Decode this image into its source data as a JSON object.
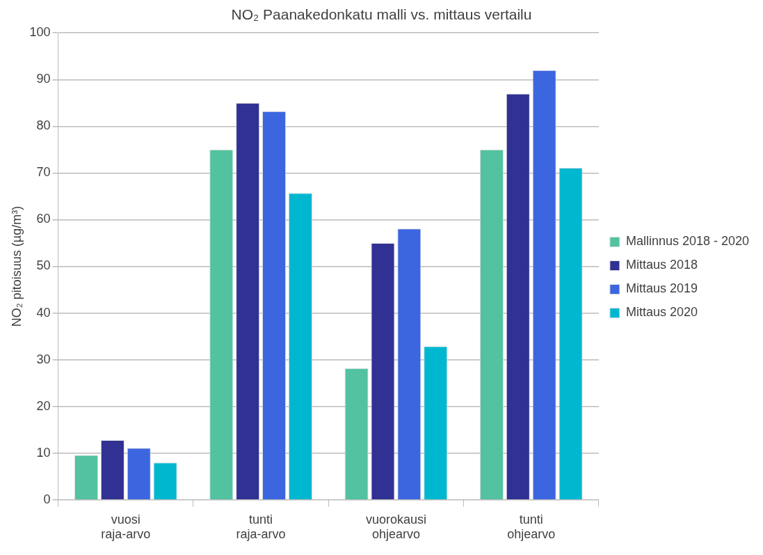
{
  "chart_data": {
    "type": "bar",
    "title": "NO₂ Paanakedonkatu malli vs. mittaus vertailu",
    "ylabel": "NO₂ pitoisuus (µg/m³)",
    "categories": [
      "vuosi\nraja-arvo",
      "tunti\nraja-arvo",
      "vuorokausi\nohjearvo",
      "tunti\nohjearvo"
    ],
    "series": [
      {
        "name": "Mallinnus 2018 - 2020",
        "color": "#52c2a0",
        "values": [
          9.6,
          75,
          28.2,
          75
        ]
      },
      {
        "name": "Mittaus 2018",
        "color": "#303193",
        "values": [
          12.8,
          85,
          55,
          87
        ]
      },
      {
        "name": "Mittaus 2019",
        "color": "#3c66e0",
        "values": [
          11.1,
          83.2,
          58.1,
          92
        ]
      },
      {
        "name": "Mittaus 2020",
        "color": "#00b7d0",
        "values": [
          8,
          65.7,
          32.9,
          71.1
        ]
      }
    ],
    "ylim": [
      0,
      100
    ],
    "yticks": [
      0,
      10,
      20,
      30,
      40,
      50,
      60,
      70,
      80,
      90,
      100
    ],
    "grid": "y",
    "legend": "right"
  }
}
